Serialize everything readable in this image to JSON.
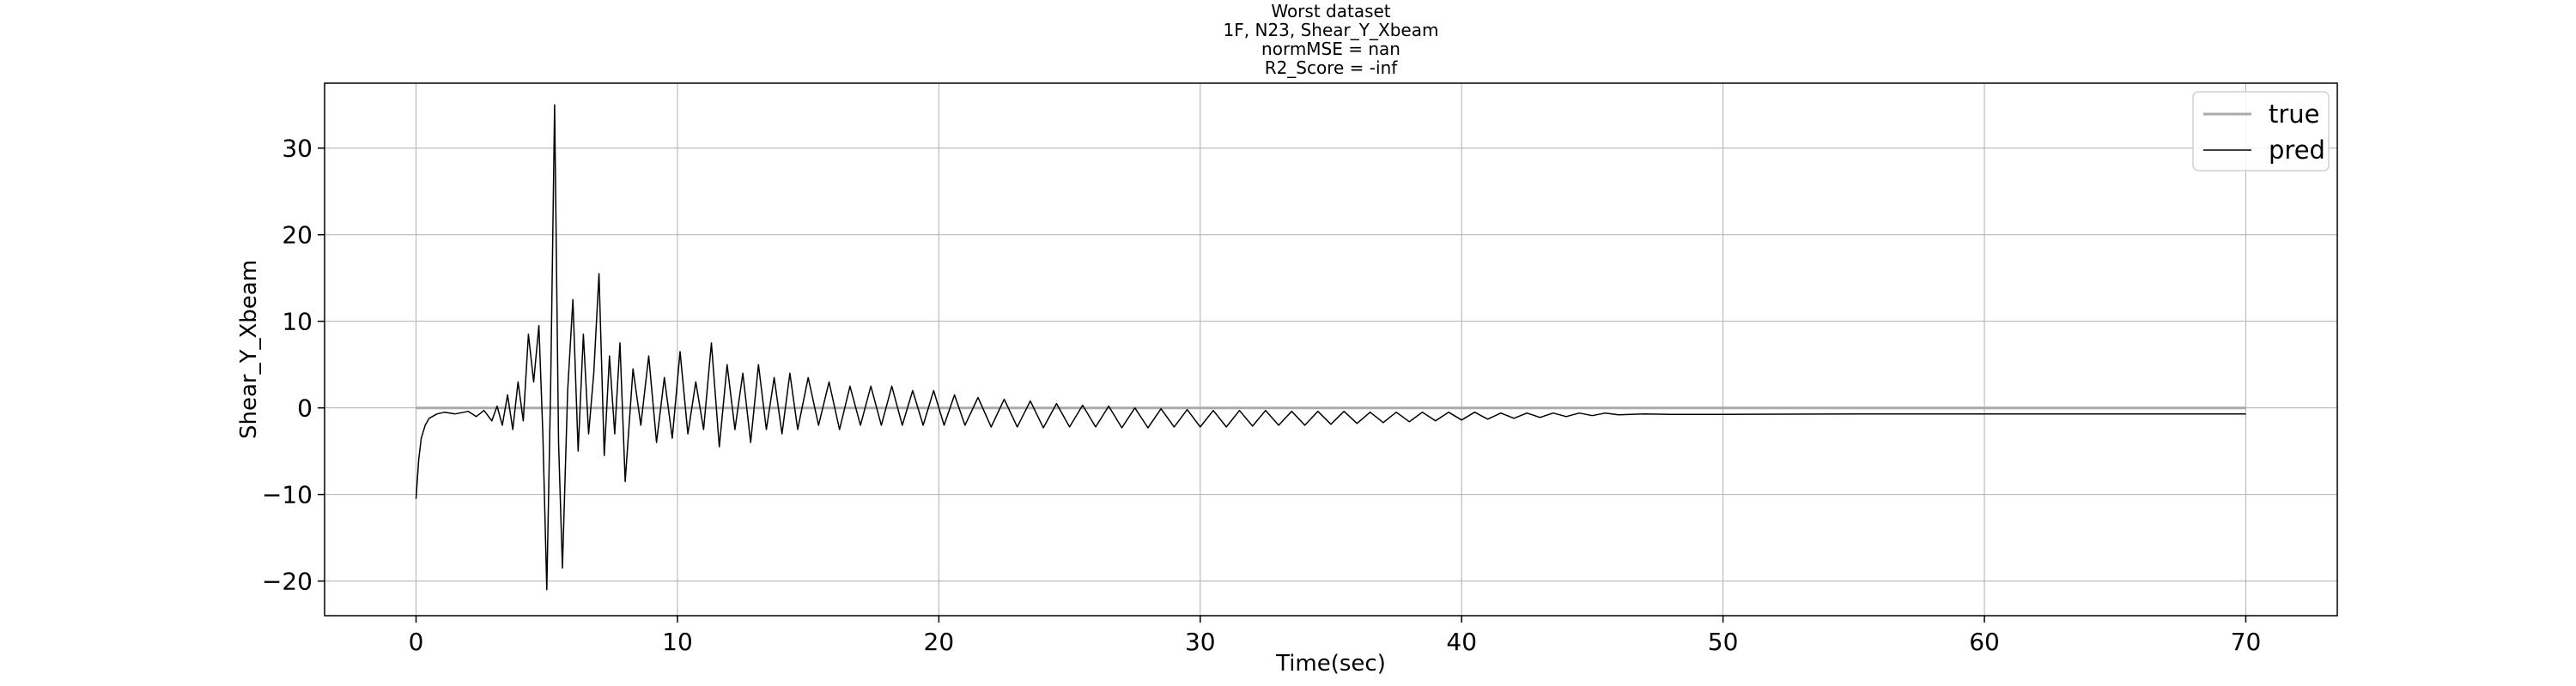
{
  "chart_data": {
    "type": "line",
    "title_lines": [
      "Worst dataset",
      "1F, N23, Shear_Y_Xbeam",
      "normMSE = nan",
      "R2_Score = -inf"
    ],
    "xlabel": "Time(sec)",
    "ylabel": "Shear_Y_Xbeam",
    "xlim": [
      -3.5,
      73.5
    ],
    "ylim": [
      -24,
      37.5
    ],
    "xticks": [
      0,
      10,
      20,
      30,
      40,
      50,
      60,
      70
    ],
    "xtick_labels": [
      "0",
      "10",
      "20",
      "30",
      "40",
      "50",
      "60",
      "70"
    ],
    "yticks": [
      -20,
      -10,
      0,
      10,
      20,
      30
    ],
    "ytick_labels": [
      "−20",
      "−10",
      "0",
      "10",
      "20",
      "30"
    ],
    "grid": true,
    "legend_position": "top-right",
    "series": [
      {
        "name": "true",
        "color": "#aaaaaa",
        "x": [
          0,
          70
        ],
        "y": [
          0,
          0
        ]
      },
      {
        "name": "pred",
        "color": "#000000",
        "x": [
          0,
          0.1,
          0.2,
          0.35,
          0.5,
          0.8,
          1.1,
          1.5,
          2.0,
          2.3,
          2.6,
          2.9,
          3.1,
          3.3,
          3.5,
          3.7,
          3.9,
          4.1,
          4.3,
          4.5,
          4.7,
          4.85,
          5.0,
          5.15,
          5.3,
          5.45,
          5.6,
          5.8,
          6.0,
          6.2,
          6.4,
          6.6,
          6.8,
          7.0,
          7.2,
          7.4,
          7.6,
          7.8,
          8.0,
          8.3,
          8.6,
          8.9,
          9.2,
          9.5,
          9.8,
          10.1,
          10.4,
          10.7,
          11.0,
          11.3,
          11.6,
          11.9,
          12.2,
          12.5,
          12.8,
          13.1,
          13.4,
          13.7,
          14.0,
          14.3,
          14.6,
          15.0,
          15.4,
          15.8,
          16.2,
          16.6,
          17.0,
          17.4,
          17.8,
          18.2,
          18.6,
          19.0,
          19.4,
          19.8,
          20.2,
          20.6,
          21.0,
          21.5,
          22.0,
          22.5,
          23.0,
          23.5,
          24.0,
          24.5,
          25.0,
          25.5,
          26.0,
          26.5,
          27.0,
          27.5,
          28.0,
          28.5,
          29.0,
          29.5,
          30.0,
          30.5,
          31.0,
          31.5,
          32.0,
          32.5,
          33.0,
          33.5,
          34.0,
          34.5,
          35.0,
          35.5,
          36.0,
          36.5,
          37.0,
          37.5,
          38.0,
          38.5,
          39.0,
          39.5,
          40.0,
          40.5,
          41.0,
          41.5,
          42.0,
          42.5,
          43.0,
          43.5,
          44.0,
          44.5,
          45.0,
          45.5,
          46.0,
          47.0,
          48.0,
          50.0,
          55.0,
          60.0,
          65.0,
          70.0
        ],
        "y": [
          -10.5,
          -6.0,
          -3.5,
          -2.0,
          -1.2,
          -0.7,
          -0.5,
          -0.7,
          -0.4,
          -1.0,
          -0.3,
          -1.5,
          0.2,
          -2.0,
          1.5,
          -2.5,
          3.0,
          -1.5,
          8.5,
          3.0,
          9.5,
          -3.0,
          -21.0,
          2.5,
          35.0,
          -4.0,
          -18.5,
          2.0,
          12.5,
          -5.0,
          8.5,
          -3.0,
          4.0,
          15.5,
          -5.5,
          6.0,
          -3.0,
          7.5,
          -8.5,
          4.5,
          -2.0,
          6.0,
          -4.0,
          3.5,
          -3.5,
          6.5,
          -3.0,
          3.0,
          -2.5,
          7.5,
          -4.5,
          5.0,
          -2.5,
          4.0,
          -4.0,
          5.0,
          -2.5,
          3.5,
          -3.0,
          4.0,
          -2.5,
          3.5,
          -2.0,
          3.0,
          -2.5,
          2.5,
          -2.0,
          2.5,
          -2.0,
          2.5,
          -2.0,
          2.0,
          -2.0,
          2.0,
          -2.0,
          1.5,
          -2.0,
          1.2,
          -2.2,
          1.0,
          -2.2,
          0.8,
          -2.3,
          0.5,
          -2.2,
          0.3,
          -2.2,
          0.2,
          -2.3,
          0.0,
          -2.3,
          -0.1,
          -2.2,
          -0.2,
          -2.2,
          -0.3,
          -2.2,
          -0.3,
          -2.1,
          -0.3,
          -2.0,
          -0.4,
          -2.0,
          -0.4,
          -1.9,
          -0.4,
          -1.8,
          -0.5,
          -1.7,
          -0.5,
          -1.6,
          -0.5,
          -1.5,
          -0.5,
          -1.4,
          -0.5,
          -1.3,
          -0.6,
          -1.2,
          -0.6,
          -1.1,
          -0.6,
          -1.0,
          -0.6,
          -0.9,
          -0.6,
          -0.8,
          -0.7,
          -0.75,
          -0.75,
          -0.7,
          -0.7,
          -0.7,
          -0.7
        ]
      }
    ]
  }
}
